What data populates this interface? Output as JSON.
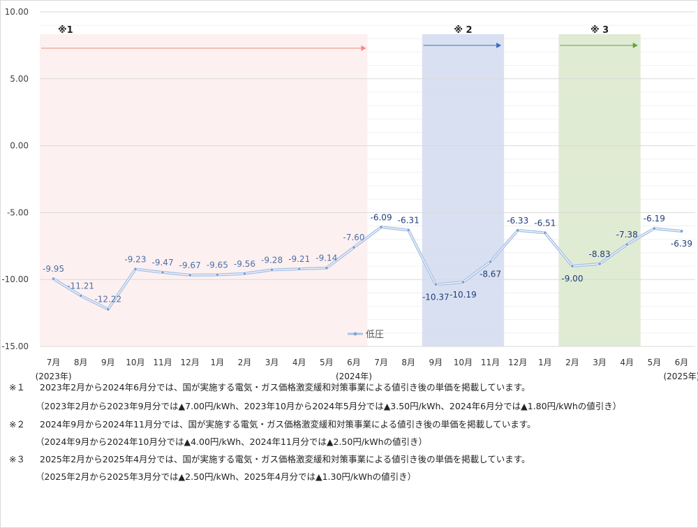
{
  "chart_data": {
    "type": "line",
    "categories": [
      "7月",
      "8月",
      "9月",
      "10月",
      "11月",
      "12月",
      "1月",
      "2月",
      "3月",
      "4月",
      "5月",
      "6月",
      "7月",
      "8月",
      "9月",
      "10月",
      "11月",
      "12月",
      "1月",
      "2月",
      "3月",
      "4月",
      "5月",
      "6月"
    ],
    "year_labels": [
      {
        "index": 0,
        "label": "(2023年)"
      },
      {
        "index": 11,
        "label": "(2024年)"
      },
      {
        "index": 23,
        "label": "(2025年)"
      }
    ],
    "series": [
      {
        "name": "低圧",
        "color": "#8fb0dc",
        "values": [
          -9.95,
          -11.21,
          -12.22,
          -9.23,
          -9.47,
          -9.67,
          -9.65,
          -9.56,
          -9.28,
          -9.21,
          -9.14,
          -7.6,
          -6.09,
          -6.31,
          -10.37,
          -10.19,
          -8.67,
          -6.33,
          -6.51,
          -9.0,
          -8.83,
          -7.38,
          -6.19,
          -6.39
        ],
        "labels": [
          "-9.95",
          "-11.21",
          "-12.22",
          "-9.23",
          "-9.47",
          "-9.67",
          "-9.65",
          "-9.56",
          "-9.28",
          "-9.21",
          "-9.14",
          "-7.60",
          "-6.09",
          "-6.31",
          "-10.37",
          "-10.19",
          "-8.67",
          "-6.33",
          "-6.51",
          "-9.00",
          "-8.83",
          "-7.38",
          "-6.19",
          "-6.39"
        ]
      }
    ],
    "ylim": [
      -15,
      10
    ],
    "yticks": [
      "10.00",
      "5.00",
      "0.00",
      "-5.00",
      "-10.00",
      "-15.00"
    ],
    "ytick_values": [
      10,
      5,
      0,
      -5,
      -10,
      -15
    ],
    "grid": true,
    "legend_position": "bottom",
    "regions": [
      {
        "label": "※1",
        "start_index": 0,
        "end_index": 11,
        "fill": "#fdeeee",
        "arrow_color": "#f08a80"
      },
      {
        "label": "※ 2",
        "start_index": 14,
        "end_index": 16,
        "fill": "#d5ddf0",
        "arrow_color": "#3d6fbf"
      },
      {
        "label": "※ 3",
        "start_index": 19,
        "end_index": 21,
        "fill": "#dde9cf",
        "arrow_color": "#5ca33c"
      }
    ]
  },
  "notes": [
    {
      "mark": "※１",
      "text": "2023年2月から2024年6月分では、国が実施する電気・ガス価格激変緩和対策事業による値引き後の単価を掲載しています。",
      "sub": "（2023年2月から2023年9月分では▲7.00円/kWh、2023年10月から2024年5月分では▲3.50円/kWh、2024年6月分では▲1.80円/kWhの値引き）"
    },
    {
      "mark": "※２",
      "text": "2024年9月から2024年11月分では、国が実施する電気・ガス価格激変緩和対策事業による値引き後の単価を掲載しています。",
      "sub": "（2024年9月から2024年10月分では▲4.00円/kWh、2024年11月分では▲2.50円/kWhの値引き）"
    },
    {
      "mark": "※３",
      "text": "2025年2月から2025年4月分では、国が実施する電気・ガス価格激変緩和対策事業による値引き後の単価を掲載しています。",
      "sub": "（2025年2月から2025年3月分では▲2.50円/kWh、2025年4月分では▲1.30円/kWhの値引き）"
    }
  ]
}
